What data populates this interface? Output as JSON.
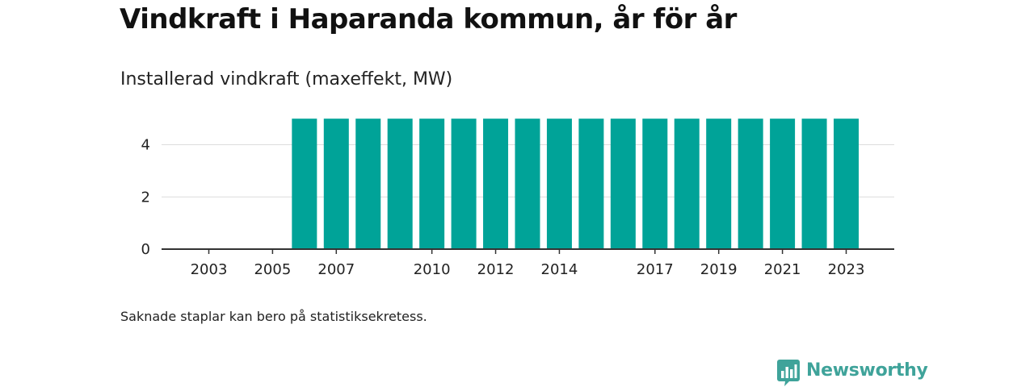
{
  "title": "Vindkraft i Haparanda kommun, år för år",
  "subtitle": "Installerad vindkraft (maxeffekt, MW)",
  "note": "Saknade staplar kan bero på statistiksekretess.",
  "brand": {
    "name": "Newsworthy",
    "icon": "newsworthy-logo-icon",
    "color": "#3fa39a"
  },
  "chart_data": {
    "type": "bar",
    "categories": [
      "2003",
      "2004",
      "2005",
      "2006",
      "2007",
      "2008",
      "2009",
      "2010",
      "2011",
      "2012",
      "2013",
      "2014",
      "2015",
      "2016",
      "2017",
      "2018",
      "2019",
      "2020",
      "2021",
      "2022",
      "2023"
    ],
    "values": [
      0,
      0,
      0,
      5,
      5,
      5,
      5,
      5,
      5,
      5,
      5,
      5,
      5,
      5,
      5,
      5,
      5,
      5,
      5,
      5,
      5
    ],
    "x_tick_labels": [
      "2003",
      "2005",
      "2007",
      "2010",
      "2012",
      "2014",
      "2017",
      "2019",
      "2021",
      "2023"
    ],
    "y_ticks": [
      0,
      2,
      4
    ],
    "ylim": [
      0,
      5.5
    ],
    "title": "Installerad vindkraft (maxeffekt, MW)",
    "xlabel": "",
    "ylabel": "",
    "grid": true,
    "legend": "none",
    "bar_color": "#00a398"
  }
}
